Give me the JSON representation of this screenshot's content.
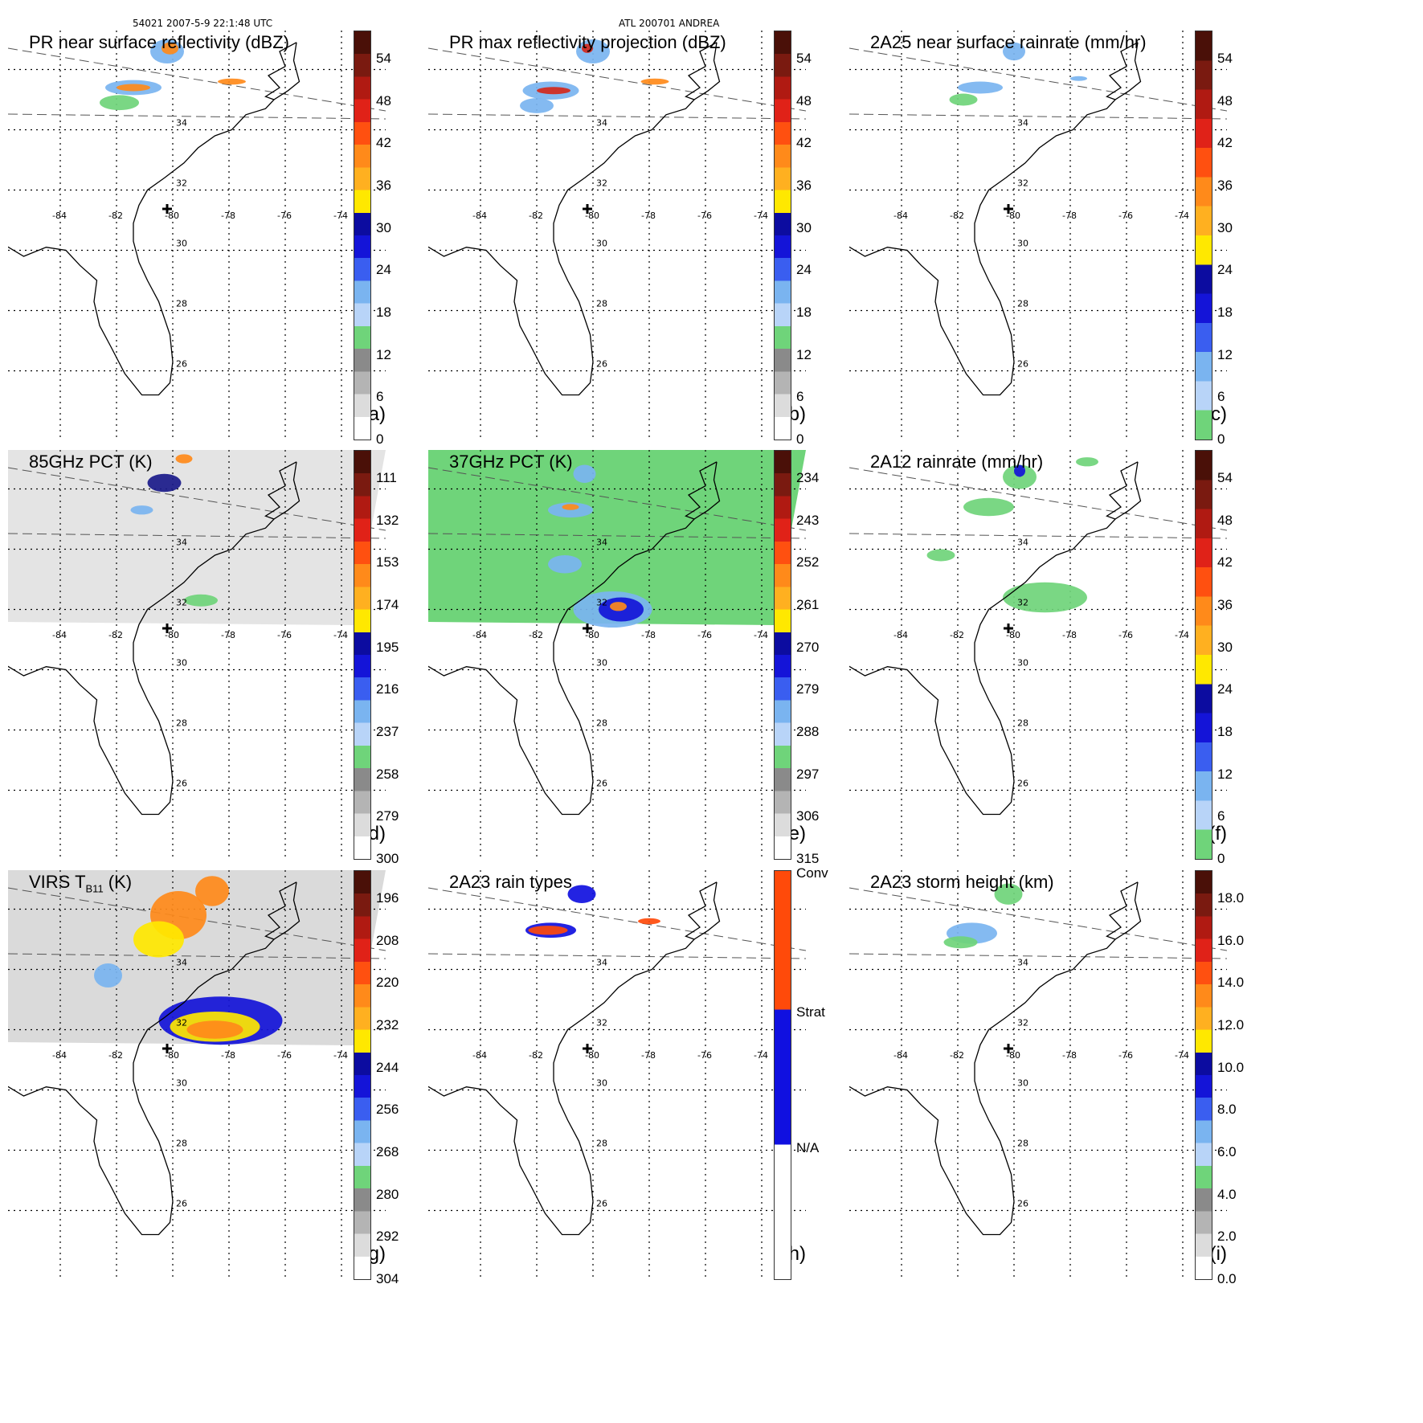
{
  "header": {
    "orbit_time": "54021 2007-5-9 22:1:48 UTC",
    "storm": "ATL 200701 ANDREA"
  },
  "map_labels": {
    "lon": [
      "-84",
      "-82",
      "-80",
      "-78",
      "-76",
      "-74"
    ],
    "lat": [
      "34",
      "32",
      "30",
      "28",
      "26"
    ]
  },
  "panels": [
    {
      "id": "a",
      "title": "PR near surface reflectivity (dBZ)",
      "letter": "(a)",
      "ticks": [
        "54",
        "48",
        "42",
        "36",
        "30",
        "24",
        "18",
        "12",
        "6",
        "0"
      ],
      "palette": "refl",
      "field": "pr_nsr"
    },
    {
      "id": "b",
      "title": "PR max reflectivity projection (dBZ)",
      "letter": "(b)",
      "ticks": [
        "54",
        "48",
        "42",
        "36",
        "30",
        "24",
        "18",
        "12",
        "6",
        "0"
      ],
      "palette": "refl",
      "field": "pr_max"
    },
    {
      "id": "c",
      "title": "2A25 near surface rainrate (mm/hr)",
      "letter": "(c)",
      "ticks": [
        "54",
        "48",
        "42",
        "36",
        "30",
        "24",
        "18",
        "12",
        "6",
        "0"
      ],
      "palette": "rain",
      "field": "rain25"
    },
    {
      "id": "d",
      "title": "85GHz PCT (K)",
      "letter": "(d)",
      "ticks": [
        "111",
        "132",
        "153",
        "174",
        "195",
        "216",
        "237",
        "258",
        "279",
        "300"
      ],
      "palette": "refl",
      "field": "pct85"
    },
    {
      "id": "e",
      "title": "37GHz PCT (K)",
      "letter": "(e)",
      "ticks": [
        "234",
        "243",
        "252",
        "261",
        "270",
        "279",
        "288",
        "297",
        "306",
        "315"
      ],
      "palette": "refl",
      "field": "pct37"
    },
    {
      "id": "f",
      "title": "2A12 rainrate (mm/hr)",
      "letter": "(f)",
      "ticks": [
        "54",
        "48",
        "42",
        "36",
        "30",
        "24",
        "18",
        "12",
        "6",
        "0"
      ],
      "palette": "rain",
      "field": "rain12"
    },
    {
      "id": "g",
      "title": "VIRS T",
      "title_sub": "B11",
      "title_end": " (K)",
      "letter": "(g)",
      "ticks": [
        "196",
        "208",
        "220",
        "232",
        "244",
        "256",
        "268",
        "280",
        "292",
        "304"
      ],
      "palette": "refl",
      "field": "virs"
    },
    {
      "id": "h",
      "title": "2A23 rain types",
      "letter": "(h)",
      "ticks": [
        "Conv",
        "Strat",
        "N/A"
      ],
      "palette": "types",
      "field": "types"
    },
    {
      "id": "i",
      "title": "2A23 storm height (km)",
      "letter": "(i)",
      "ticks": [
        "18.0",
        "16.0",
        "14.0",
        "12.0",
        "10.0",
        "8.0",
        "6.0",
        "4.0",
        "2.0",
        "0.0"
      ],
      "palette": "height",
      "field": "height"
    }
  ],
  "colors": {
    "red_dark": "#5a1a10",
    "red": "#d4281c",
    "orange": "#ff8a1a",
    "yellow": "#ffe800",
    "blue": "#1414d8",
    "light_blue": "#7ab4f0",
    "green": "#6fd47a",
    "gray": "#a0a0a0",
    "conv": "#ff4a0a",
    "strat": "#1010e0"
  }
}
